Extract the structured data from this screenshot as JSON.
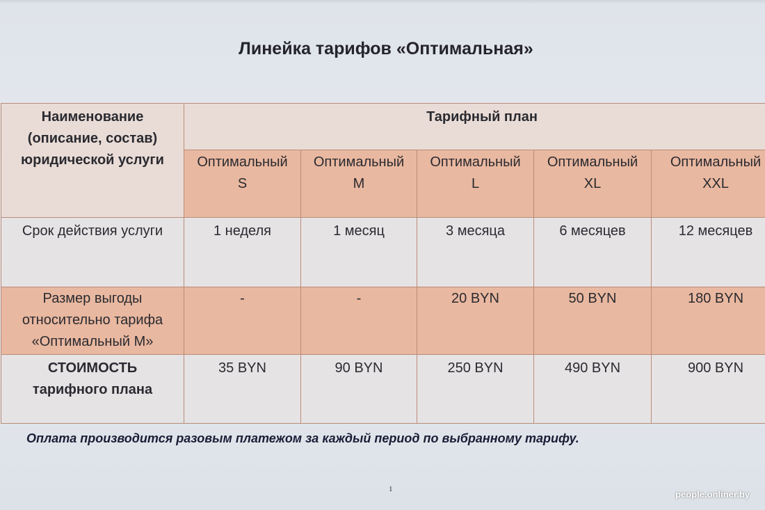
{
  "title": "Линейка тарифов «Оптимальная»",
  "table": {
    "name_header": [
      "Наименование",
      "(описание, состав)",
      "юридической услуги"
    ],
    "plan_group_header": "Тарифный план",
    "plans": [
      {
        "line1": "Оптимальный",
        "line2": "S"
      },
      {
        "line1": "Оптимальный",
        "line2": "M"
      },
      {
        "line1": "Оптимальный",
        "line2": "L"
      },
      {
        "line1": "Оптимальный",
        "line2": "XL"
      },
      {
        "line1": "Оптимальный",
        "line2": "XXL"
      }
    ],
    "rows": {
      "term": {
        "label": [
          "Срок действия услуги"
        ],
        "values": [
          "1 неделя",
          "1 месяц",
          "3 месяца",
          "6 месяцев",
          "12 месяцев"
        ]
      },
      "benefit": {
        "label": [
          "Размер выгоды",
          "относительно тарифа",
          "«Оптимальный М»"
        ],
        "values": [
          "-",
          "-",
          "20 BYN",
          "50 BYN",
          "180 BYN"
        ]
      },
      "cost": {
        "label": [
          "СТОИМОСТЬ",
          "тарифного плана"
        ],
        "values": [
          "35 BYN",
          "90 BYN",
          "250 BYN",
          "490 BYN",
          "900 BYN"
        ]
      }
    }
  },
  "footnote": "Оплата производится разовым платежом за каждый период по выбранному тарифу.",
  "page_number": "1",
  "watermark": "people.onliner.by",
  "colors": {
    "header_cell": "#e9dcd6",
    "peach_cell": "#e9b8a0",
    "light_cell": "#e6e3e5",
    "border": "#b98c78",
    "background": "#e2e6eb",
    "footnote_text": "#1b1c36"
  }
}
